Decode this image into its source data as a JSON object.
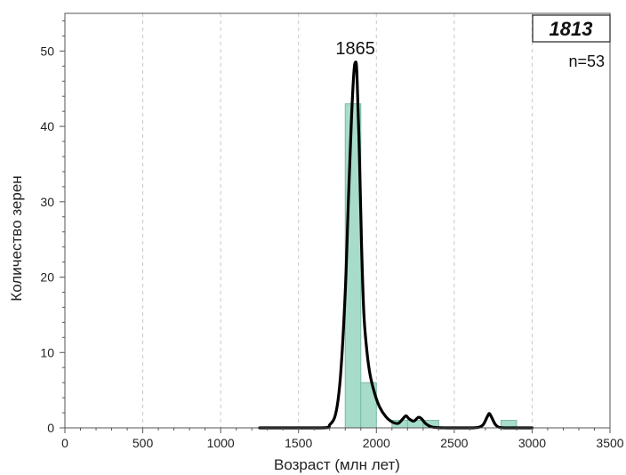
{
  "chart_data": {
    "type": "bar",
    "sample_id": "1813",
    "n_label": "n=53",
    "peak_label": "1865",
    "peak_x": 1865,
    "xlabel": "Возраст (млн лет)",
    "ylabel": "Количество зерен",
    "xlim": [
      0,
      3500
    ],
    "ylim": [
      0,
      55
    ],
    "x_ticks": [
      0,
      500,
      1000,
      1500,
      2000,
      2500,
      3000,
      3500
    ],
    "y_ticks": [
      0,
      10,
      20,
      30,
      40,
      50
    ],
    "grid": {
      "vertical": true,
      "horizontal": false,
      "style": "dashed"
    },
    "bin_width": 100,
    "bins": [
      {
        "start": 1800,
        "end": 1900,
        "count": 43
      },
      {
        "start": 1900,
        "end": 2000,
        "count": 6
      },
      {
        "start": 2100,
        "end": 2200,
        "count": 1
      },
      {
        "start": 2200,
        "end": 2300,
        "count": 1
      },
      {
        "start": 2300,
        "end": 2400,
        "count": 1
      },
      {
        "start": 2800,
        "end": 2900,
        "count": 1
      }
    ],
    "curve": {
      "x": [
        1250,
        1650,
        1700,
        1740,
        1770,
        1800,
        1820,
        1840,
        1855,
        1865,
        1875,
        1890,
        1905,
        1920,
        1940,
        1960,
        1990,
        2020,
        2060,
        2100,
        2140,
        2170,
        2190,
        2210,
        2240,
        2270,
        2290,
        2320,
        2360,
        2450,
        2620,
        2680,
        2710,
        2725,
        2740,
        2770,
        2820,
        3000
      ],
      "y": [
        0,
        0,
        0.4,
        2,
        7,
        18,
        30,
        41,
        47,
        48.5,
        47,
        37,
        24,
        15,
        10,
        7,
        4.5,
        2.8,
        1.5,
        0.8,
        0.6,
        1.2,
        1.6,
        1.2,
        0.9,
        1.4,
        1.2,
        0.5,
        0.1,
        0,
        0,
        0.3,
        1.4,
        1.9,
        1.4,
        0.3,
        0,
        0
      ]
    },
    "colors": {
      "bar_fill": "#a7dcca",
      "bar_stroke": "#79bba5",
      "curve": "#000000",
      "grid": "#c8c8c8",
      "axis": "#555555"
    }
  }
}
